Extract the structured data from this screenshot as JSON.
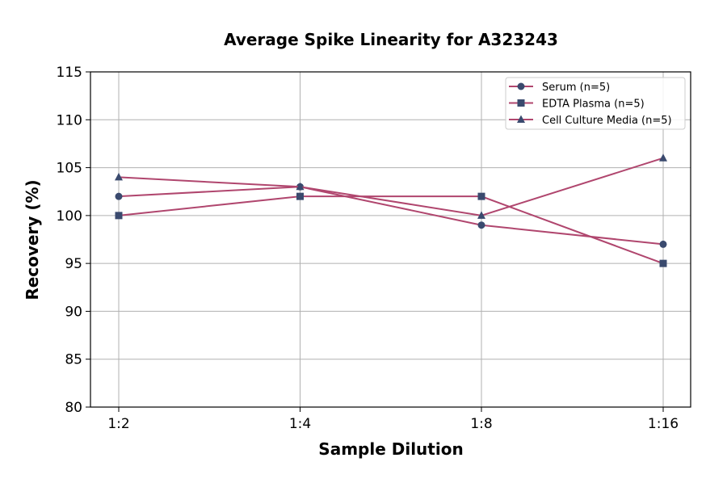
{
  "chart_data": {
    "type": "line",
    "title": "Average Spike Linearity for A323243",
    "xlabel": "Sample Dilution",
    "ylabel": "Recovery (%)",
    "categories": [
      "1:2",
      "1:4",
      "1:8",
      "1:16"
    ],
    "ylim": [
      80,
      115
    ],
    "yticks": [
      80,
      85,
      90,
      95,
      100,
      105,
      110,
      115
    ],
    "grid": true,
    "legend_position": "top-right",
    "line_color": "#b0466e",
    "marker_color": "#3a4a6e",
    "series": [
      {
        "name": "Serum (n=5)",
        "marker": "circle",
        "values": [
          102,
          103,
          99,
          97
        ]
      },
      {
        "name": "EDTA Plasma (n=5)",
        "marker": "square",
        "values": [
          100,
          102,
          102,
          95
        ]
      },
      {
        "name": "Cell Culture Media (n=5)",
        "marker": "triangle",
        "values": [
          104,
          103,
          100,
          106
        ]
      }
    ]
  }
}
